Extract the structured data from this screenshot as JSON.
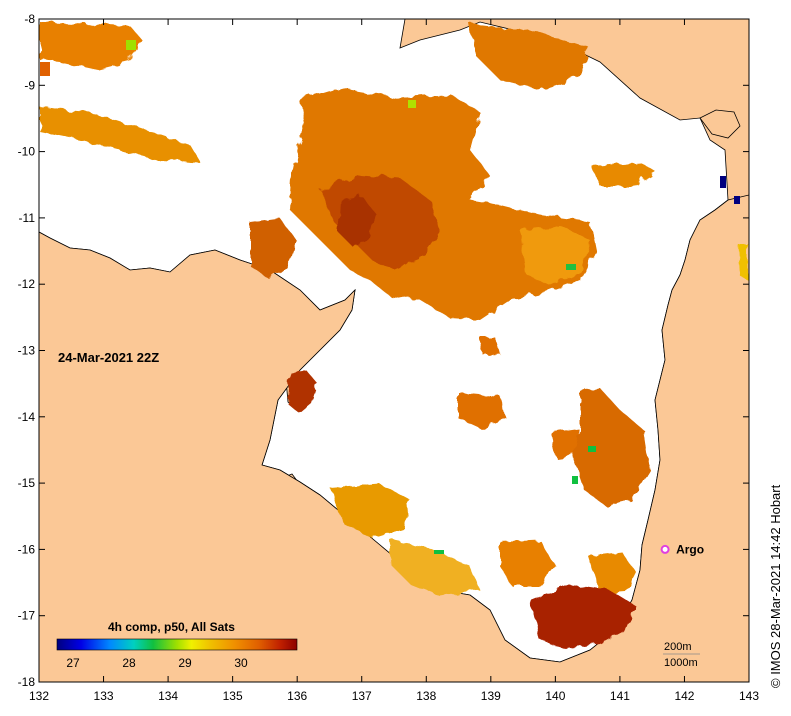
{
  "map": {
    "timestamp": "24-Mar-2021 22Z",
    "credit": "© IMOS 28-Mar-2021 14:42 Hobart",
    "colors": {
      "land": "#fbc896",
      "water_nodata": "#ffffff",
      "coast": "#000000",
      "argo_marker": "#e040e0"
    },
    "longitude": {
      "min": 132,
      "max": 143,
      "ticks": [
        132,
        133,
        134,
        135,
        136,
        137,
        138,
        139,
        140,
        141,
        142,
        143
      ]
    },
    "latitude": {
      "min": -18,
      "max": -8,
      "ticks": [
        -8,
        -9,
        -10,
        -11,
        -12,
        -13,
        -14,
        -15,
        -16,
        -17,
        -18
      ]
    },
    "argo": {
      "label": "Argo",
      "lon": 141.7,
      "lat": -16.0
    },
    "legend": {
      "title": "4h comp, p50, All Sats",
      "ticks": [
        "27",
        "28",
        "29",
        "30"
      ],
      "stops": [
        "#00007f",
        "#0000e6",
        "#0088ff",
        "#00d0c0",
        "#10c040",
        "#a0e000",
        "#f0f000",
        "#f0c000",
        "#f09000",
        "#e06000",
        "#c02000",
        "#8c0000"
      ]
    },
    "scale": {
      "line1": "200m",
      "line2": "1000m"
    }
  }
}
